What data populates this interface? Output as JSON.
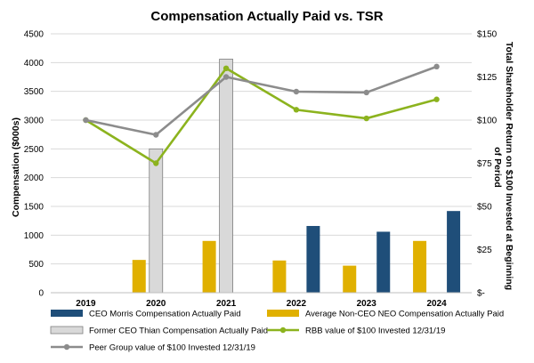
{
  "chart_data": {
    "type": "bar",
    "title": "Compensation Actually Paid vs. TSR",
    "ylabel": "Compensation ($000s)",
    "y2label": "Total Shareholder Return on $100 Invested at Beginning of Period",
    "categories": [
      "2019",
      "2020",
      "2021",
      "2022",
      "2023",
      "2024"
    ],
    "ylim": [
      0,
      4500
    ],
    "yticks": [
      "0",
      "500",
      "1000",
      "1500",
      "2000",
      "2500",
      "3000",
      "3500",
      "4000",
      "4500"
    ],
    "y2lim": [
      0,
      150
    ],
    "y2ticks": [
      "$-",
      "$25",
      "$50",
      "$75",
      "$100",
      "$125",
      "$150"
    ],
    "grid": true,
    "legend_position": "bottom",
    "bar_series": [
      {
        "name": "CEO Morris Compensation Actually Paid",
        "color": "#1f4e79",
        "slot": 2,
        "values": [
          null,
          null,
          null,
          1160,
          1060,
          1420
        ]
      },
      {
        "name": "Average Non-CEO NEO Compensation Actually Paid",
        "color": "#e0b000",
        "slot": 0,
        "values": [
          null,
          570,
          900,
          560,
          470,
          900
        ]
      },
      {
        "name": "Former CEO Thian Compensation Actually Paid",
        "color": "#d9d9d9",
        "stroke": "#7f7f7f",
        "slot": 1,
        "values": [
          null,
          2500,
          4060,
          null,
          null,
          null
        ]
      }
    ],
    "line_series": [
      {
        "name": "RBB value of $100 Invested 12/31/19",
        "color": "#8cb31e",
        "values": [
          100,
          75,
          130,
          106,
          101,
          112
        ]
      },
      {
        "name": "Peer Group value of $100 Invested 12/31/19",
        "color": "#8c8c8c",
        "values": [
          100,
          91.5,
          125,
          116.5,
          116,
          131
        ]
      }
    ]
  }
}
